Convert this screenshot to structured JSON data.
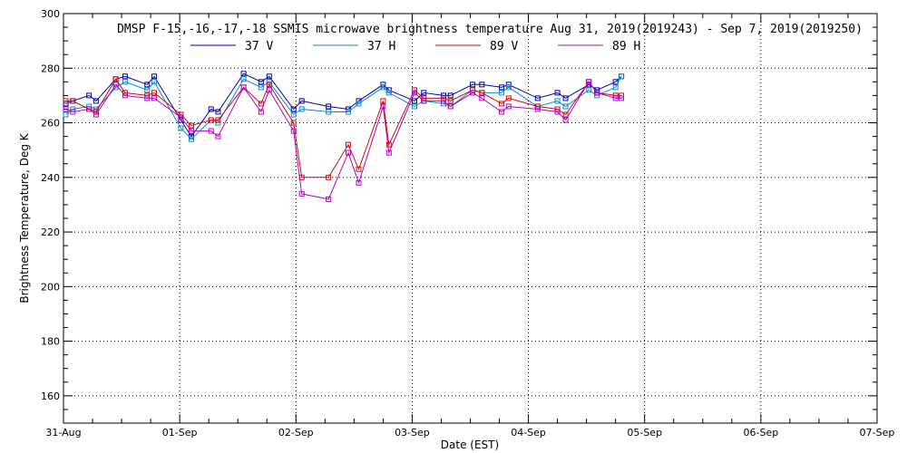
{
  "chart_data": {
    "type": "line",
    "title": "DMSP F-15,-16,-17,-18 SSMIS microwave brightness temperature Aug 31, 2019(2019243) - Sep  7, 2019(2019250)",
    "xlabel": "Date (EST)",
    "ylabel": "Brightness Temperature, Deg K",
    "xlim": [
      0,
      7
    ],
    "ylim": [
      150,
      300
    ],
    "x_ticks": [
      0,
      1,
      2,
      3,
      4,
      5,
      6,
      7
    ],
    "x_tick_labels": [
      "31-Aug",
      "01-Sep",
      "02-Sep",
      "03-Sep",
      "04-Sep",
      "05-Sep",
      "06-Sep",
      "07-Sep"
    ],
    "y_ticks": [
      160,
      180,
      200,
      220,
      240,
      260,
      280,
      300
    ],
    "y_tick_labels": [
      "160",
      "180",
      "200",
      "220",
      "240",
      "260",
      "280",
      "300"
    ],
    "grid": true,
    "legend_position": "top-center",
    "x": [
      0.02,
      0.08,
      0.22,
      0.28,
      0.45,
      0.53,
      0.72,
      0.78,
      1.01,
      1.1,
      1.27,
      1.33,
      1.55,
      1.7,
      1.77,
      1.98,
      2.05,
      2.28,
      2.45,
      2.54,
      2.75,
      2.8,
      3.02,
      3.1,
      3.27,
      3.33,
      3.52,
      3.6,
      3.77,
      3.83,
      4.08,
      4.25,
      4.32,
      4.52,
      4.59,
      4.75,
      4.8
    ],
    "series": [
      {
        "name": "37 V",
        "color": "#0000b4",
        "values": [
          267,
          268,
          270,
          268,
          276,
          277,
          274,
          277,
          261,
          255,
          265,
          264,
          278,
          275,
          277,
          265,
          268,
          266,
          265,
          268,
          274,
          272,
          268,
          271,
          270,
          270,
          274,
          274,
          273,
          274,
          269,
          271,
          269,
          274,
          272,
          275,
          277
        ]
      },
      {
        "name": "37 H",
        "color": "#0a8ccc",
        "values": [
          263,
          265,
          266,
          265,
          273,
          275,
          272,
          275,
          258,
          254,
          261,
          260,
          276,
          273,
          275,
          263,
          265,
          264,
          264,
          267,
          273,
          271,
          266,
          268,
          267,
          266,
          272,
          271,
          271,
          273,
          266,
          268,
          266,
          272,
          270,
          273,
          277
        ]
      },
      {
        "name": "89 V",
        "color": "#d20a0a",
        "values": [
          268,
          268,
          265,
          264,
          276,
          271,
          270,
          271,
          263,
          259,
          261,
          261,
          273,
          267,
          274,
          260,
          240,
          240,
          252,
          243,
          268,
          252,
          272,
          269,
          269,
          268,
          272,
          271,
          267,
          269,
          266,
          265,
          263,
          275,
          271,
          270,
          270
        ]
      },
      {
        "name": "89 H",
        "color": "#b400c8",
        "values": [
          265,
          264,
          265,
          263,
          274,
          270,
          269,
          269,
          262,
          257,
          257,
          255,
          273,
          264,
          272,
          257,
          234,
          232,
          249,
          238,
          266,
          249,
          271,
          268,
          268,
          266,
          271,
          269,
          264,
          266,
          265,
          264,
          261,
          275,
          271,
          269,
          269
        ]
      }
    ]
  }
}
